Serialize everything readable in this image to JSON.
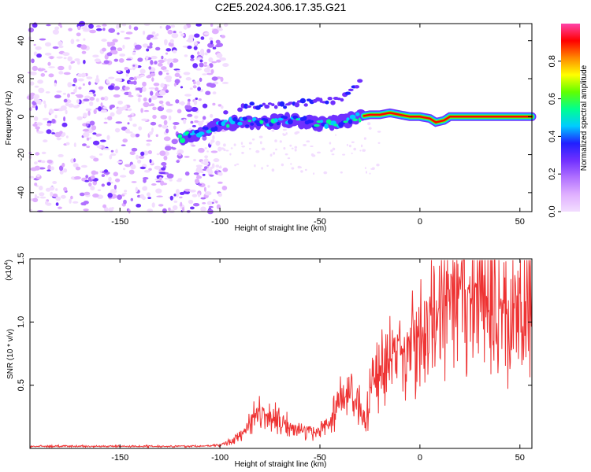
{
  "chart_data": [
    {
      "type": "heatmap",
      "title": "C2E5.2024.306.17.35.G21",
      "xlabel": "Height of straight line (km)",
      "ylabel": "Frequency (Hz)",
      "xlim": [
        -195,
        56
      ],
      "ylim": [
        -50,
        49
      ],
      "xticks": [
        -150,
        -100,
        -50,
        0,
        50
      ],
      "yticks": [
        -40,
        -20,
        0,
        20,
        40
      ],
      "colorbar": {
        "label": "Normalized spectral amplitude",
        "range": [
          0,
          1
        ],
        "ticks": [
          "0.0",
          "0.2",
          "0.4",
          "0.6",
          "0.8"
        ],
        "colors": [
          "#f2ddff",
          "#e0b0ff",
          "#b070ff",
          "#7030ff",
          "#2020ff",
          "#00ccff",
          "#00ff90",
          "#60ff00",
          "#ffff00",
          "#ff8800",
          "#ff0000",
          "#ff44aa"
        ]
      },
      "ridge": {
        "x": [
          -120,
          -110,
          -100,
          -90,
          -80,
          -70,
          -60,
          -50,
          -40,
          -30,
          -25,
          -20,
          -15,
          -10,
          -5,
          0,
          5,
          8,
          12,
          15,
          20,
          30,
          40,
          50,
          55
        ],
        "freq": [
          -11,
          -9,
          -4,
          -3,
          -3,
          -2,
          -2,
          -4,
          -3,
          0,
          1,
          1,
          2,
          1,
          0,
          0,
          -1,
          -3,
          -2,
          0,
          0,
          0,
          0,
          0,
          0
        ]
      },
      "secondary_ridge": {
        "x": [
          -90,
          -80,
          -70,
          -60,
          -50,
          -40,
          -35,
          -30
        ],
        "freq": [
          5,
          6,
          6,
          7,
          8,
          9,
          12,
          18
        ]
      },
      "noise_region_x": [
        -195,
        -105
      ]
    },
    {
      "type": "line",
      "xlabel": "Height of straight line (km)",
      "ylabel": "SNR (10 * v/v)",
      "yscale_label": "(x10",
      "yscale_exponent": "4",
      "xlim": [
        -195,
        56
      ],
      "ylim": [
        0,
        1.5
      ],
      "xticks": [
        -150,
        -100,
        -50,
        0,
        50
      ],
      "yticks": [
        "0.5",
        "1.0",
        "1.5"
      ],
      "line_color": "#ee3333",
      "series": [
        {
          "x": [
            -195,
            -150,
            -110,
            -100,
            -95,
            -90,
            -85,
            -80,
            -75,
            -70,
            -65,
            -60,
            -55,
            -50,
            -45,
            -40,
            -35,
            -30,
            -27,
            -25,
            -20,
            -15,
            -10,
            -5,
            0,
            5,
            10,
            15,
            20,
            25,
            30,
            35,
            40,
            45,
            50,
            56
          ],
          "y": [
            0.02,
            0.02,
            0.02,
            0.03,
            0.06,
            0.12,
            0.25,
            0.35,
            0.3,
            0.25,
            0.2,
            0.18,
            0.14,
            0.18,
            0.25,
            0.45,
            0.55,
            0.4,
            0.2,
            0.55,
            0.75,
            0.8,
            0.9,
            0.95,
            1.05,
            1.15,
            1.25,
            1.3,
            1.35,
            1.4,
            1.38,
            1.3,
            1.3,
            1.22,
            1.32,
            1.3
          ]
        }
      ]
    }
  ]
}
